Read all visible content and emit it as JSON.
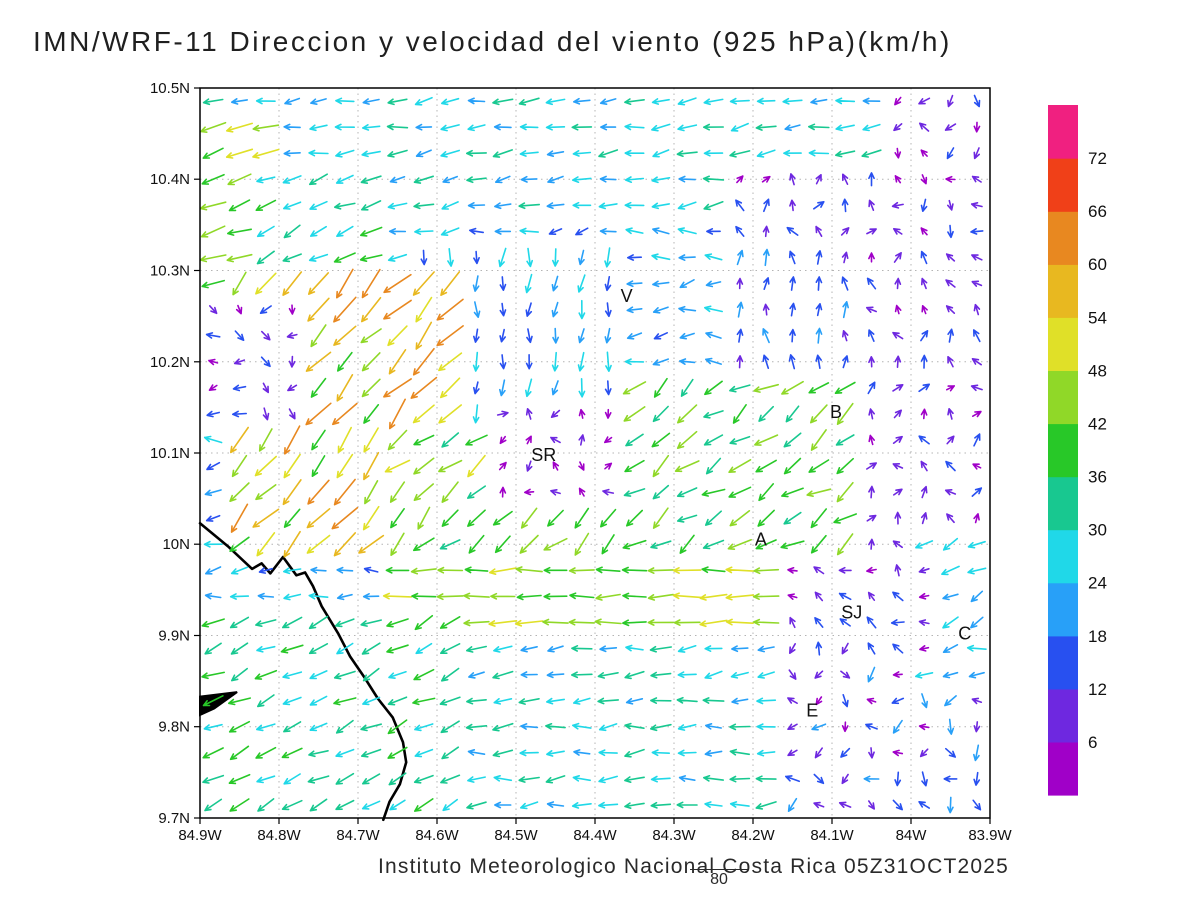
{
  "title": "IMN/WRF-11 Direccion y velocidad del viento (925 hPa)(km/h)",
  "footer": {
    "credit": "Instituto Meteorologico Nacional Costa Rica 05Z31OCT2025",
    "extra_label": "80"
  },
  "chart_data": {
    "type": "quiver",
    "title": "IMN/WRF-11 Direccion y velocidad del viento (925 hPa)(km/h)",
    "variable": "Direccion y velocidad del viento",
    "level": "925 hPa",
    "units": "km/h",
    "model": "IMN/WRF-11",
    "valid_time": "05Z31OCT2025",
    "lon_range": [
      84.9,
      83.9
    ],
    "lat_range": [
      9.7,
      10.5
    ],
    "lon_ticks": [
      {
        "v": 84.9,
        "label": "84.9W"
      },
      {
        "v": 84.8,
        "label": "84.8W"
      },
      {
        "v": 84.7,
        "label": "84.7W"
      },
      {
        "v": 84.6,
        "label": "84.6W"
      },
      {
        "v": 84.5,
        "label": "84.5W"
      },
      {
        "v": 84.4,
        "label": "84.4W"
      },
      {
        "v": 84.3,
        "label": "84.3W"
      },
      {
        "v": 84.2,
        "label": "84.2W"
      },
      {
        "v": 84.1,
        "label": "84.1W"
      },
      {
        "v": 84.0,
        "label": "84W"
      },
      {
        "v": 83.9,
        "label": "83.9W"
      }
    ],
    "lat_ticks": [
      {
        "v": 10.5,
        "label": "10.5N"
      },
      {
        "v": 10.4,
        "label": "10.4N"
      },
      {
        "v": 10.3,
        "label": "10.3N"
      },
      {
        "v": 10.2,
        "label": "10.2N"
      },
      {
        "v": 10.1,
        "label": "10.1N"
      },
      {
        "v": 10.0,
        "label": "10N"
      },
      {
        "v": 9.9,
        "label": "9.9N"
      },
      {
        "v": 9.8,
        "label": "9.8N"
      },
      {
        "v": 9.7,
        "label": "9.7N"
      }
    ],
    "grid": {
      "cols": 30,
      "rows": 28
    },
    "speed_levels": [
      6,
      12,
      18,
      24,
      30,
      36,
      42,
      48,
      54,
      60,
      66,
      72
    ],
    "speed_colors": [
      "#a000c8",
      "#6e28e0",
      "#2850f0",
      "#28a0f8",
      "#20d8e8",
      "#18c890",
      "#28c828",
      "#90d828",
      "#e0e028",
      "#e8b820",
      "#e88820",
      "#f04018",
      "#f02080"
    ],
    "legend_position": "right",
    "grid_lines": "dotted",
    "stations": [
      {
        "label": "V",
        "lon": 84.36,
        "lat": 10.272
      },
      {
        "label": "B",
        "lon": 84.095,
        "lat": 10.145
      },
      {
        "label": "SR",
        "lon": 84.465,
        "lat": 10.098
      },
      {
        "label": "A",
        "lon": 84.19,
        "lat": 10.005
      },
      {
        "label": "SJ",
        "lon": 84.075,
        "lat": 9.925
      },
      {
        "label": "C",
        "lon": 83.932,
        "lat": 9.902
      },
      {
        "label": "E",
        "lon": 84.125,
        "lat": 9.818
      }
    ],
    "coastline": [
      [
        84.9,
        10.023
      ],
      [
        84.865,
        9.998
      ],
      [
        84.834,
        9.973
      ],
      [
        84.822,
        9.979
      ],
      [
        84.811,
        9.968
      ],
      [
        84.795,
        9.986
      ],
      [
        84.778,
        9.966
      ],
      [
        84.767,
        9.969
      ],
      [
        84.757,
        9.954
      ],
      [
        84.746,
        9.932
      ],
      [
        84.725,
        9.902
      ],
      [
        84.71,
        9.877
      ],
      [
        84.691,
        9.853
      ],
      [
        84.675,
        9.831
      ],
      [
        84.656,
        9.81
      ],
      [
        84.643,
        9.783
      ],
      [
        84.639,
        9.761
      ],
      [
        84.647,
        9.737
      ],
      [
        84.66,
        9.718
      ],
      [
        84.668,
        9.698
      ]
    ],
    "coast_spur": [
      [
        84.9,
        9.833
      ],
      [
        84.853,
        9.838
      ],
      [
        84.882,
        9.82
      ],
      [
        84.9,
        9.813
      ]
    ],
    "flow_regions": [
      {
        "name": "base",
        "lon": [
          84.9,
          83.9
        ],
        "lat": [
          9.7,
          10.5
        ],
        "dir": 185,
        "djit": 25,
        "spd": 22,
        "sjit": 7
      },
      {
        "name": "top-band",
        "lon": [
          84.9,
          83.9
        ],
        "lat": [
          10.36,
          10.5
        ],
        "dir": 190,
        "djit": 14,
        "spd": 26,
        "sjit": 7
      },
      {
        "name": "top-left-strong",
        "lon": [
          84.9,
          84.8
        ],
        "lat": [
          10.26,
          10.47
        ],
        "dir": 198,
        "djit": 12,
        "spd": 44,
        "sjit": 7
      },
      {
        "name": "nw-green",
        "lon": [
          84.82,
          84.66
        ],
        "lat": [
          10.3,
          10.42
        ],
        "dir": 205,
        "djit": 15,
        "spd": 33,
        "sjit": 6
      },
      {
        "name": "center-down",
        "lon": [
          84.62,
          84.36
        ],
        "lat": [
          10.12,
          10.34
        ],
        "dir": 265,
        "djit": 18,
        "spd": 21,
        "sjit": 9
      },
      {
        "name": "orange-streak",
        "lon": [
          84.86,
          84.58
        ],
        "lat": [
          10.0,
          10.3
        ],
        "dir": 228,
        "djit": 15,
        "spd": 53,
        "sjit": 13
      },
      {
        "name": "purple-pocket-w",
        "lon": [
          84.9,
          84.77
        ],
        "lat": [
          10.12,
          10.27
        ],
        "dir": 250,
        "djit": 85,
        "spd": 10,
        "sjit": 6
      },
      {
        "name": "center-green",
        "lon": [
          84.66,
          84.34
        ],
        "lat": [
          9.97,
          10.13
        ],
        "dir": 222,
        "djit": 22,
        "spd": 42,
        "sjit": 8
      },
      {
        "name": "sr-calm",
        "lon": [
          84.52,
          84.3
        ],
        "lat": [
          10.05,
          10.16
        ],
        "dir": 150,
        "djit": 170,
        "spd": 6,
        "sjit": 4
      },
      {
        "name": "east-calm",
        "lon": [
          84.22,
          83.9
        ],
        "lat": [
          9.97,
          10.42
        ],
        "dir": 95,
        "djit": 70,
        "spd": 9,
        "sjit": 6
      },
      {
        "name": "east-up-cyan",
        "lon": [
          84.24,
          84.06
        ],
        "lat": [
          10.14,
          10.33
        ],
        "dir": 95,
        "djit": 25,
        "spd": 15,
        "sjit": 8
      },
      {
        "name": "b-green",
        "lon": [
          84.36,
          84.08
        ],
        "lat": [
          9.97,
          10.18
        ],
        "dir": 215,
        "djit": 22,
        "spd": 39,
        "sjit": 8
      },
      {
        "name": "yellow-band",
        "lon": [
          84.68,
          84.18
        ],
        "lat": [
          9.9,
          9.98
        ],
        "dir": 182,
        "djit": 8,
        "spd": 45,
        "sjit": 7
      },
      {
        "name": "south-band",
        "lon": [
          84.9,
          83.9
        ],
        "lat": [
          9.7,
          9.9
        ],
        "dir": 185,
        "djit": 16,
        "spd": 28,
        "sjit": 7
      },
      {
        "name": "sw-diag",
        "lon": [
          84.9,
          84.58
        ],
        "lat": [
          9.7,
          9.92
        ],
        "dir": 205,
        "djit": 14,
        "spd": 33,
        "sjit": 7
      },
      {
        "name": "se-calm",
        "lon": [
          84.16,
          83.9
        ],
        "lat": [
          9.7,
          9.88
        ],
        "dir": 235,
        "djit": 90,
        "spd": 12,
        "sjit": 9
      },
      {
        "name": "e-cyan-edge",
        "lon": [
          84.0,
          83.9
        ],
        "lat": [
          9.85,
          10.0
        ],
        "dir": 200,
        "djit": 25,
        "spd": 24,
        "sjit": 6
      },
      {
        "name": "sj-calm",
        "lon": [
          84.16,
          83.96
        ],
        "lat": [
          9.88,
          9.99
        ],
        "dir": 170,
        "djit": 80,
        "spd": 10,
        "sjit": 6
      },
      {
        "name": "ne-corner-calm",
        "lon": [
          84.02,
          83.9
        ],
        "lat": [
          10.34,
          10.5
        ],
        "dir": 210,
        "djit": 85,
        "spd": 8,
        "sjit": 5
      }
    ]
  }
}
